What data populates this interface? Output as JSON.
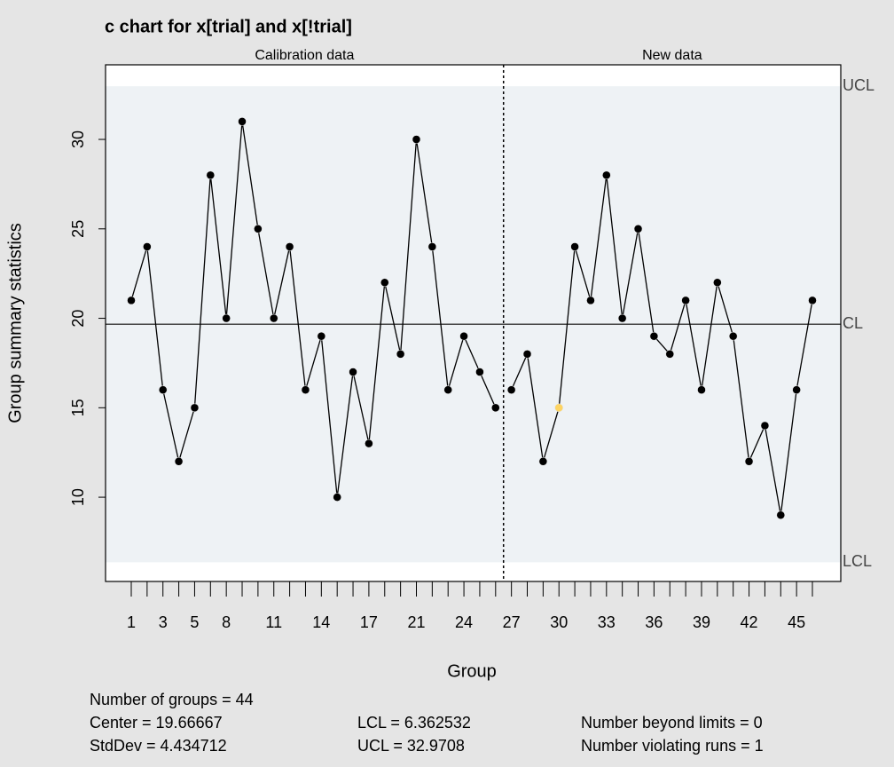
{
  "chart_data": {
    "type": "line",
    "title": "c chart for x[trial] and x[!trial]",
    "x_label": "Group",
    "y_label": "Group summary statistics",
    "panels": [
      "Calibration data",
      "New data"
    ],
    "categories": [
      "1",
      null,
      "3",
      null,
      "5",
      null,
      "8",
      null,
      null,
      "11",
      null,
      null,
      "14",
      null,
      null,
      "17",
      null,
      null,
      "21",
      null,
      null,
      "24",
      null,
      null,
      "27",
      null,
      null,
      "30",
      null,
      null,
      "33",
      null,
      null,
      "36",
      null,
      null,
      "39",
      null,
      null,
      "42",
      null,
      null,
      "45",
      null
    ],
    "series": [
      {
        "name": "Calibration data",
        "color": "#000000",
        "values": [
          21,
          24,
          16,
          12,
          15,
          28,
          20,
          31,
          25,
          20,
          24,
          16,
          19,
          10,
          17,
          13,
          22,
          18,
          30,
          24,
          16,
          19,
          17,
          15,
          null,
          null,
          null,
          null,
          null,
          null,
          null,
          null,
          null,
          null,
          null,
          null,
          null,
          null,
          null,
          null,
          null,
          null,
          null,
          null
        ]
      },
      {
        "name": "New data",
        "color": "#000000",
        "values": [
          null,
          null,
          null,
          null,
          null,
          null,
          null,
          null,
          null,
          null,
          null,
          null,
          null,
          null,
          null,
          null,
          null,
          null,
          null,
          null,
          null,
          null,
          null,
          null,
          16,
          18,
          12,
          15,
          24,
          21,
          28,
          20,
          25,
          19,
          18,
          21,
          16,
          22,
          19,
          12,
          14,
          9,
          16,
          21
        ]
      }
    ],
    "violation_color": "#fdd463",
    "violations": [
      27
    ],
    "limits": [
      {
        "label": "UCL",
        "value": 32.9708
      },
      {
        "label": "CL",
        "value": 19.66667
      },
      {
        "label": "LCL",
        "value": 6.362532
      }
    ],
    "ylim": [
      5.29,
      34.17
    ],
    "yticks": [
      10,
      15,
      20,
      25,
      30
    ],
    "stats": [
      "Number of groups = 44",
      "Center = 19.66667",
      "StdDev = 4.434712",
      "LCL = 6.362532",
      "UCL = 32.9708",
      "Number beyond limits = 0",
      "Number violating runs = 1"
    ]
  }
}
